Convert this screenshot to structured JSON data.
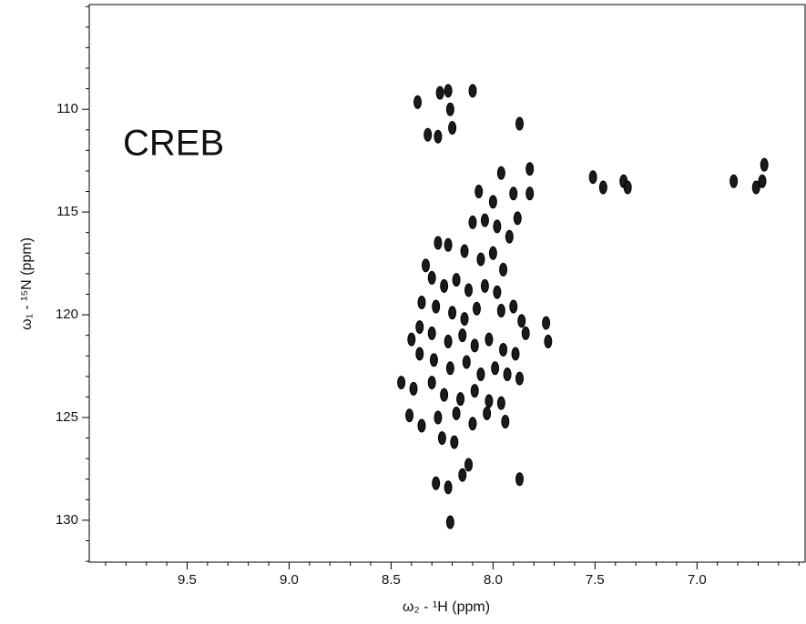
{
  "chart_data": {
    "type": "scatter",
    "annotation": "CREB",
    "x_label": "ω₂ - ¹H  (ppm)",
    "y_label": "ω₁ - ¹⁵N  (ppm)",
    "color": "#1a1a1a",
    "xlim": [
      9.98,
      6.47
    ],
    "ylim": [
      104.9,
      132.04
    ],
    "xticks": [
      9.5,
      {
        "value": 9,
        "label": "9.0"
      },
      8.5,
      {
        "value": 8,
        "label": "8.0"
      },
      7.5,
      {
        "value": 7,
        "label": "7.0"
      }
    ],
    "yticks": [
      110,
      115,
      120,
      125,
      130
    ],
    "xminorticks": [
      9.9,
      9.8,
      9.7,
      9.6,
      9.4,
      9.3,
      9.2,
      9.1,
      8.9,
      8.8,
      8.7,
      8.6,
      8.4,
      8.3,
      8.2,
      8.1,
      7.9,
      7.8,
      7.7,
      7.6,
      7.4,
      7.3,
      7.2,
      7.1,
      6.9,
      6.8,
      6.7,
      6.6,
      6.5
    ],
    "yminorticks": [
      105,
      106,
      107,
      108,
      109,
      111,
      112,
      113,
      114,
      116,
      117,
      118,
      119,
      121,
      122,
      123,
      124,
      126,
      127,
      128,
      129,
      131,
      132
    ],
    "x": [
      8.37,
      8.26,
      8.22,
      8.1,
      8.21,
      8.32,
      8.27,
      8.2,
      7.87,
      7.96,
      7.82,
      8.07,
      8.0,
      7.9,
      7.82,
      7.88,
      7.51,
      7.46,
      7.36,
      7.34,
      6.82,
      6.71,
      6.67,
      6.68,
      8.1,
      8.04,
      7.98,
      7.92,
      8.22,
      8.27,
      8.14,
      8.06,
      8.0,
      7.95,
      8.33,
      8.3,
      8.24,
      8.18,
      8.12,
      8.04,
      7.98,
      8.35,
      8.28,
      8.2,
      8.14,
      8.08,
      7.96,
      7.9,
      7.86,
      7.84,
      8.36,
      8.3,
      8.22,
      8.15,
      8.09,
      8.02,
      7.95,
      7.89,
      7.74,
      7.73,
      8.4,
      8.36,
      8.29,
      8.21,
      8.13,
      8.06,
      7.99,
      7.93,
      7.87,
      8.45,
      8.39,
      8.3,
      8.24,
      8.16,
      8.09,
      8.02,
      7.96,
      8.41,
      8.35,
      8.27,
      8.18,
      8.1,
      8.03,
      7.94,
      8.25,
      8.19,
      8.12,
      8.15,
      8.28,
      8.22,
      7.87,
      8.21
    ],
    "values": [
      109.65,
      109.2,
      109.1,
      109.1,
      110.0,
      111.24,
      111.33,
      110.9,
      110.7,
      113.1,
      112.9,
      114.0,
      114.5,
      114.1,
      114.1,
      115.3,
      113.3,
      113.8,
      113.5,
      113.8,
      113.5,
      113.8,
      112.7,
      113.5,
      115.5,
      115.4,
      115.7,
      116.2,
      116.6,
      116.5,
      116.9,
      117.3,
      117.0,
      117.8,
      117.6,
      118.2,
      118.6,
      118.3,
      118.8,
      118.6,
      118.9,
      119.4,
      119.6,
      119.9,
      120.2,
      119.7,
      119.8,
      119.6,
      120.3,
      120.9,
      120.6,
      120.9,
      121.3,
      121.0,
      121.5,
      121.2,
      121.7,
      121.9,
      120.4,
      121.3,
      121.2,
      121.9,
      122.2,
      122.6,
      122.3,
      122.9,
      122.6,
      122.9,
      123.1,
      123.3,
      123.6,
      123.3,
      123.9,
      124.1,
      123.7,
      124.2,
      124.3,
      124.9,
      125.4,
      125.0,
      124.8,
      125.3,
      124.8,
      125.2,
      126.0,
      126.2,
      127.3,
      127.8,
      128.2,
      128.4,
      128.0,
      130.1
    ]
  }
}
